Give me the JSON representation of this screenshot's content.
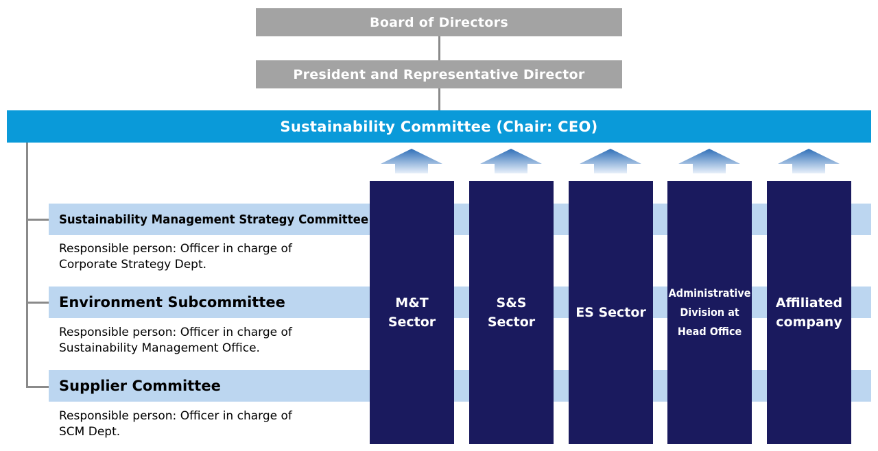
{
  "board": "Board of Directors",
  "president": "President and Representative Director",
  "committee": "Sustainability Committee (Chair: CEO)",
  "subcommittees": [
    {
      "title": "Sustainability Management Strategy Committee",
      "responsible_line1": "Responsible person: Officer in charge of",
      "responsible_line2": "Corporate Strategy Dept."
    },
    {
      "title": "Environment Subcommittee",
      "responsible_line1": "Responsible person: Officer in charge of",
      "responsible_line2": "Sustainability Management Office."
    },
    {
      "title": "Supplier Committee",
      "responsible_line1": "Responsible person: Officer in charge of",
      "responsible_line2": "SCM Dept."
    }
  ],
  "sectors": [
    {
      "line1": "M&T",
      "line2": "Sector",
      "line3": ""
    },
    {
      "line1": "S&S",
      "line2": "Sector",
      "line3": ""
    },
    {
      "line1": "ES Sector",
      "line2": "",
      "line3": ""
    },
    {
      "line1": "Administrative",
      "line2": "Division at",
      "line3": "Head Office"
    },
    {
      "line1": "Affiliated",
      "line2": "company",
      "line3": ""
    }
  ],
  "colors": {
    "gray_box": "#a3a3a3",
    "committee_blue": "#0a9ad9",
    "band_light_blue": "#bcd6f0",
    "sector_navy": "#1a1a5e",
    "connector_gray": "#8a8a8a"
  }
}
